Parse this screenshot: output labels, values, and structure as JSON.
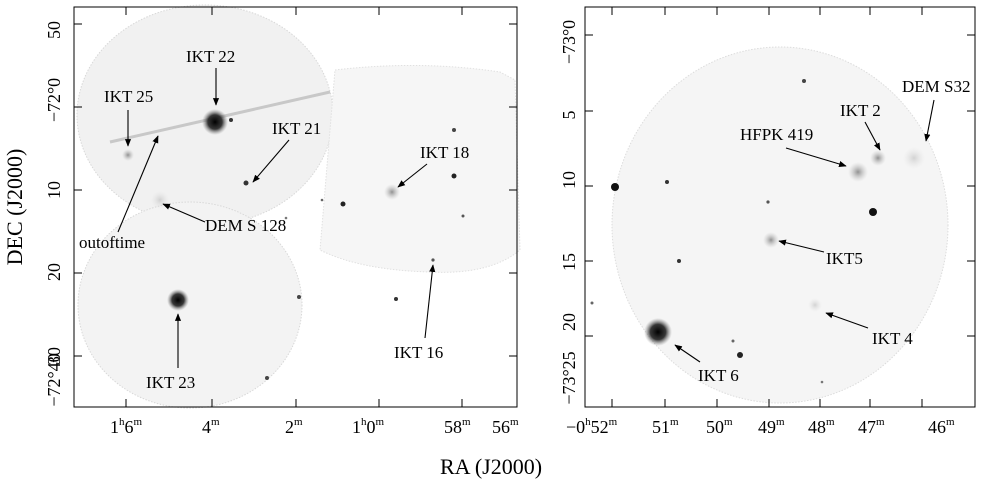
{
  "figure": {
    "x_axis_title": "RA (J2000)",
    "y_axis_title": "DEC (J2000)"
  },
  "left_panel": {
    "dec_ticks": [
      "50",
      "−72°0",
      "10",
      "20",
      "30",
      "−72°40"
    ],
    "ra_ticks": [
      {
        "main": "1",
        "sup1": "h",
        "num": "6",
        "sup2": "m"
      },
      {
        "main": "4",
        "sup2": "m"
      },
      {
        "main": "2",
        "sup2": "m"
      },
      {
        "main": "1",
        "sup1": "h",
        "num": "0",
        "sup2": "m"
      },
      {
        "main": "58",
        "sup2": "m"
      },
      {
        "main": "56",
        "sup2": "m"
      }
    ],
    "labels": {
      "ikt22": "IKT 22",
      "ikt25": "IKT 25",
      "ikt21": "IKT 21",
      "ikt18": "IKT 18",
      "dem128": "DEM S 128",
      "outoftime": "outoftime",
      "ikt23": "IKT 23",
      "ikt16": "IKT 16"
    }
  },
  "right_panel": {
    "dec_ticks": [
      "−73°0",
      "5",
      "10",
      "15",
      "20",
      "−73°25"
    ],
    "ra_ticks": [
      {
        "main": "−0",
        "sup1": "h",
        "num": "52",
        "sup2": "m"
      },
      {
        "main": "51",
        "sup2": "m"
      },
      {
        "main": "50",
        "sup2": "m"
      },
      {
        "main": "49",
        "sup2": "m"
      },
      {
        "main": "48",
        "sup2": "m"
      },
      {
        "main": "47",
        "sup2": "m"
      },
      {
        "main": "46",
        "sup2": "m"
      }
    ],
    "labels": {
      "dems32": "DEM S32",
      "ikt2": "IKT 2",
      "hfpk419": "HFPK 419",
      "ikt5": "IKT5",
      "ikt4": "IKT 4",
      "ikt6": "IKT 6"
    }
  }
}
